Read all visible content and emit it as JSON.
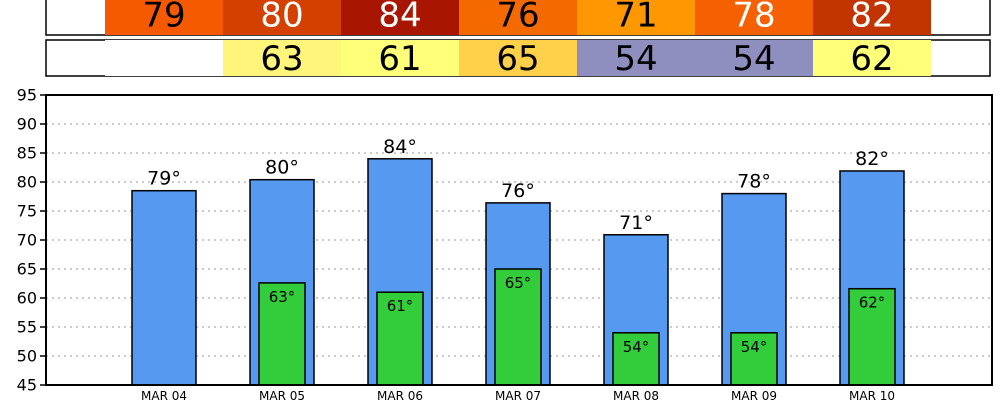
{
  "table": {
    "high_row": [
      {
        "text": "79",
        "color": "#f55a00"
      },
      {
        "text": "80",
        "color": "#d44000"
      },
      {
        "text": "84",
        "color": "#a81500"
      },
      {
        "text": "76",
        "color": "#f56a00"
      },
      {
        "text": "71",
        "color": "#ff9800"
      },
      {
        "text": "78",
        "color": "#f56000"
      },
      {
        "text": "82",
        "color": "#c23500"
      }
    ],
    "low_row": [
      {
        "text": "",
        "color": "#ffffff"
      },
      {
        "text": "63",
        "color": "#fff57a"
      },
      {
        "text": "61",
        "color": "#ffff7a"
      },
      {
        "text": "65",
        "color": "#ffd04a"
      },
      {
        "text": "54",
        "color": "#8f8fbf"
      },
      {
        "text": "54",
        "color": "#8f8fbf"
      },
      {
        "text": "62",
        "color": "#ffff7a"
      }
    ],
    "high_text_colors": [
      "#000000",
      "#ffffff",
      "#ffffff",
      "#000000",
      "#000000",
      "#ffffff",
      "#ffffff"
    ]
  },
  "chart_data": {
    "type": "bar",
    "categories": [
      "MAR 04",
      "MAR 05",
      "MAR 06",
      "MAR 07",
      "MAR 08",
      "MAR 09",
      "MAR 10"
    ],
    "series": [
      {
        "values": [
          78.5,
          80.4,
          84,
          76.4,
          70.9,
          78,
          81.9
        ],
        "labels": [
          "79°",
          "80°",
          "84°",
          "76°",
          "71°",
          "78°",
          "82°"
        ],
        "color": "#5599f0"
      },
      {
        "values": [
          null,
          62.6,
          61,
          65,
          54,
          54,
          61.6
        ],
        "labels": [
          "",
          "63°",
          "61°",
          "65°",
          "54°",
          "54°",
          "62°"
        ],
        "color": "#33cc3b"
      }
    ],
    "ylim": [
      45,
      95
    ],
    "yticks": [
      45,
      50,
      55,
      60,
      65,
      70,
      75,
      80,
      85,
      90,
      95
    ],
    "grid": true
  }
}
